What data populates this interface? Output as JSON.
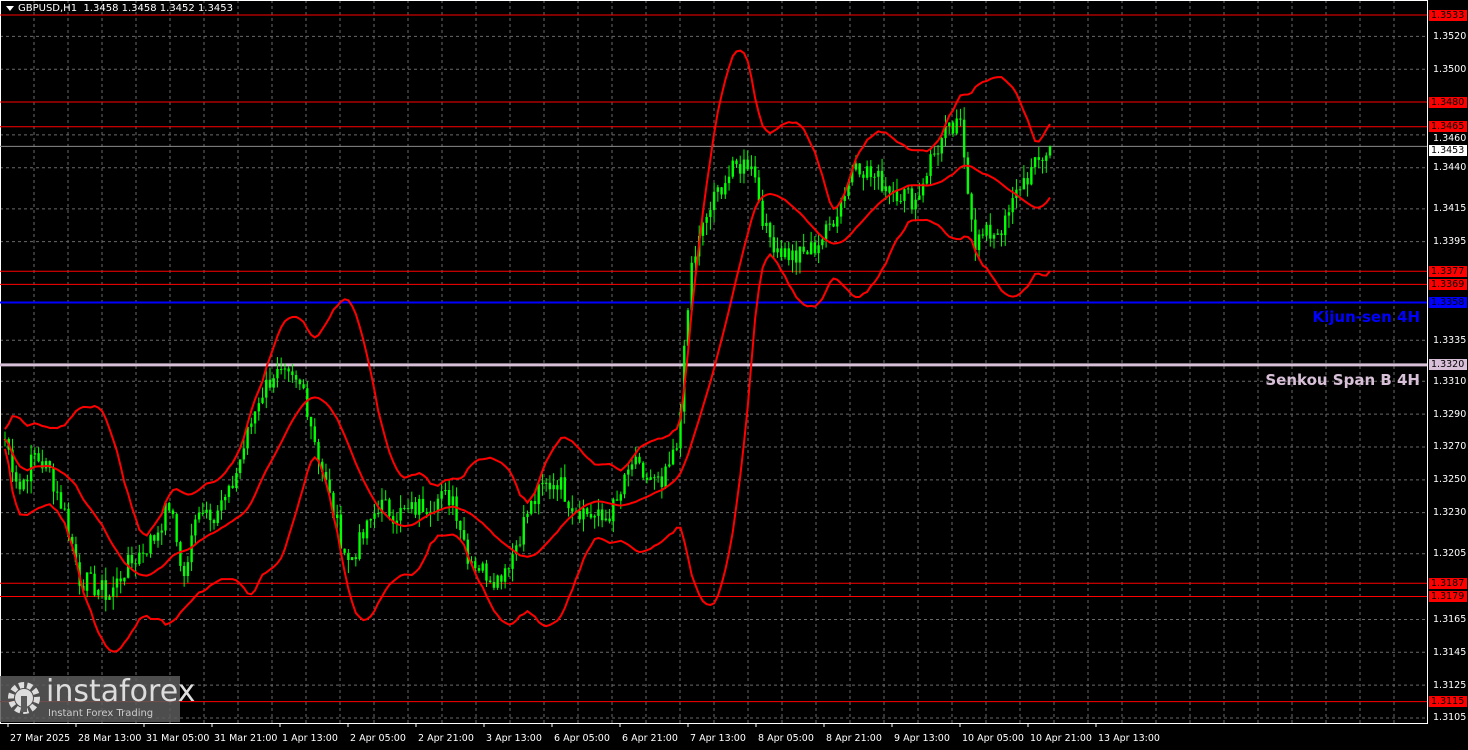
{
  "header": {
    "symbol": "GBPUSD,H1",
    "ohlc": "1.3458 1.3458 1.3452 1.3453"
  },
  "price_axis": {
    "ticks": [
      "1.3520",
      "1.3500",
      "1.3460",
      "1.3440",
      "1.3415",
      "1.3395",
      "1.3335",
      "1.3310",
      "1.3290",
      "1.3270",
      "1.3250",
      "1.3230",
      "1.3205",
      "1.3165",
      "1.3145",
      "1.3125",
      "1.3105"
    ],
    "current_price": "1.3453"
  },
  "time_axis": {
    "ticks": [
      "27 Mar 2025",
      "28 Mar 13:00",
      "31 Mar 05:00",
      "31 Mar 21:00",
      "1 Apr 13:00",
      "2 Apr 05:00",
      "2 Apr 21:00",
      "3 Apr 13:00",
      "6 Apr 05:00",
      "6 Apr 21:00",
      "7 Apr 13:00",
      "8 Apr 05:00",
      "8 Apr 21:00",
      "9 Apr 13:00",
      "10 Apr 05:00",
      "10 Apr 21:00",
      "13 Apr 13:00"
    ]
  },
  "levels": [
    {
      "price": "1.3533",
      "color": "#ff0000"
    },
    {
      "price": "1.3480",
      "color": "#ff0000"
    },
    {
      "price": "1.3465",
      "color": "#ff0000"
    },
    {
      "price": "1.3377",
      "color": "#ff0000"
    },
    {
      "price": "1.3369",
      "color": "#ff0000"
    },
    {
      "price": "1.3187",
      "color": "#ff0000"
    },
    {
      "price": "1.3179",
      "color": "#ff0000"
    },
    {
      "price": "1.3115",
      "color": "#ff0000"
    }
  ],
  "kijun": {
    "label": "Kijun-sen 4H",
    "price": "1.3358",
    "color": "#0000ff"
  },
  "senkou": {
    "label": "Senkou Span B 4H",
    "price": "1.3320",
    "color": "#d8c0d8"
  },
  "logo": {
    "name": "instaforex",
    "tagline": "Instant Forex Trading"
  },
  "colors": {
    "candle": "#00ff00",
    "indicator": "#ff0000",
    "grid": "#7f7f7f",
    "background": "#000000"
  },
  "chart_data": {
    "type": "candlestick",
    "symbol": "GBPUSD",
    "timeframe": "H1",
    "ylim": [
      1.31,
      1.354
    ],
    "grid": true,
    "close_path": [
      1.3275,
      1.3245,
      1.3265,
      1.3255,
      1.323,
      1.319,
      1.3185,
      1.318,
      1.3195,
      1.3205,
      1.3215,
      1.3235,
      1.319,
      1.3235,
      1.323,
      1.324,
      1.327,
      1.33,
      1.3315,
      1.331,
      1.3305,
      1.3265,
      1.323,
      1.32,
      1.3215,
      1.3235,
      1.323,
      1.323,
      1.3235,
      1.3238,
      1.324,
      1.3205,
      1.3195,
      1.319,
      1.3205,
      1.323,
      1.3245,
      1.325,
      1.3235,
      1.323,
      1.3225,
      1.3235,
      1.326,
      1.325,
      1.3245,
      1.327,
      1.338,
      1.341,
      1.343,
      1.344,
      1.3445,
      1.34,
      1.339,
      1.3385,
      1.339,
      1.34,
      1.342,
      1.3445,
      1.3435,
      1.343,
      1.3425,
      1.342,
      1.3445,
      1.346,
      1.3465,
      1.3395,
      1.34,
      1.3405,
      1.343,
      1.344,
      1.3453
    ]
  }
}
